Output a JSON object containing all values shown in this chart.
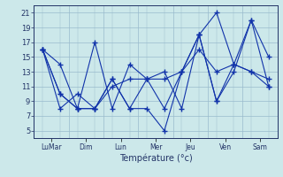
{
  "xlabel": "Température (°c)",
  "x_major_labels": [
    "LuMar",
    "Dim",
    "Lun",
    "Mer",
    "Jeu",
    "Ven",
    "Sam"
  ],
  "ylim": [
    4,
    22
  ],
  "yticks": [
    5,
    7,
    9,
    11,
    13,
    15,
    17,
    19,
    21
  ],
  "background_color": "#cce8ea",
  "grid_color": "#99bbcc",
  "line_color": "#1133aa",
  "series": [
    [
      16,
      8,
      10,
      8,
      12,
      8,
      12,
      13,
      8,
      18,
      9,
      14,
      13,
      11
    ],
    [
      16,
      14,
      8,
      17,
      8,
      14,
      12,
      12,
      13,
      16,
      13,
      14,
      13,
      12
    ],
    [
      16,
      10,
      8,
      8,
      11,
      12,
      12,
      8,
      13,
      18,
      21,
      14,
      20,
      15
    ],
    [
      16,
      10,
      8,
      8,
      12,
      8,
      8,
      5,
      13,
      18,
      9,
      13,
      20,
      11
    ]
  ],
  "n_points": 14,
  "day_boundaries": [
    0,
    2,
    4,
    6,
    8,
    10,
    12,
    14
  ]
}
